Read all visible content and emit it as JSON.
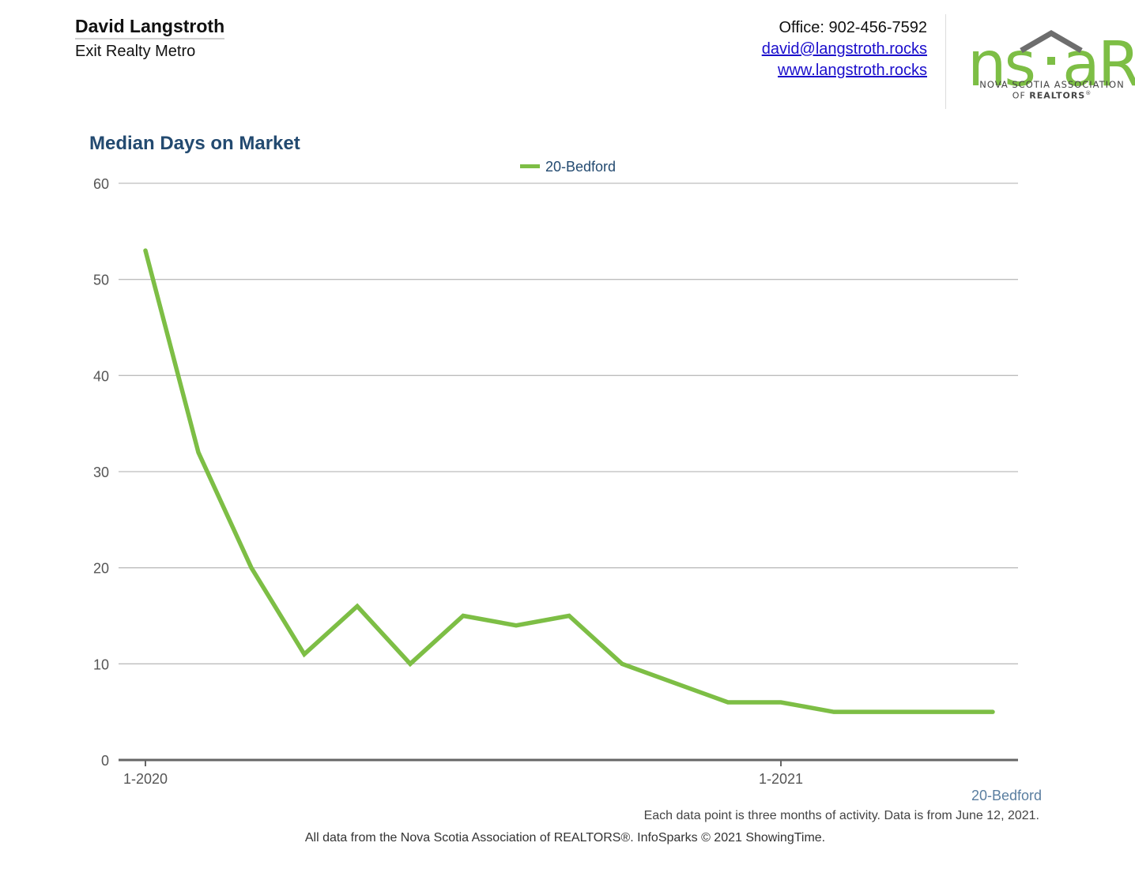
{
  "header": {
    "agent_name": "David Langstroth",
    "company": "Exit Realty Metro",
    "office": "Office: 902-456-7592",
    "email": "david@langstroth.rocks",
    "website": "www.langstroth.rocks",
    "logo_text": "nsaR",
    "logo_subtitle_1": "NOVA SCOTIA ASSOCIATION",
    "logo_subtitle_2_prefix": "OF",
    "logo_subtitle_2_bold": "REALTORS",
    "logo_registered": "®"
  },
  "colors": {
    "series": "#7dbe45",
    "title": "#234a70",
    "grid": "#bdbdbd",
    "axis": "#666666",
    "link": "#1a0dcc",
    "logo_green": "#7dbe45",
    "logo_roof": "#6d6d6d"
  },
  "chart_data": {
    "type": "line",
    "title": "Median Days on Market",
    "legend": {
      "position": "top-center"
    },
    "series": [
      {
        "name": "20-Bedford",
        "values": [
          53,
          32,
          20,
          11,
          16,
          10,
          15,
          14,
          15,
          10,
          8,
          6,
          6,
          5,
          5,
          5,
          5
        ]
      }
    ],
    "x_tick_labels": [
      {
        "index": 0,
        "label": "1-2020"
      },
      {
        "index": 12,
        "label": "1-2021"
      }
    ],
    "y_ticks": [
      0,
      10,
      20,
      30,
      40,
      50,
      60
    ],
    "ylim": [
      0,
      60
    ],
    "grid": true,
    "series_label": "20-Bedford"
  },
  "note": "Each data point is three months of activity. Data is from June 12, 2021.",
  "footer": "All data from the Nova Scotia Association of REALTORS®. InfoSparks © 2021 ShowingTime."
}
